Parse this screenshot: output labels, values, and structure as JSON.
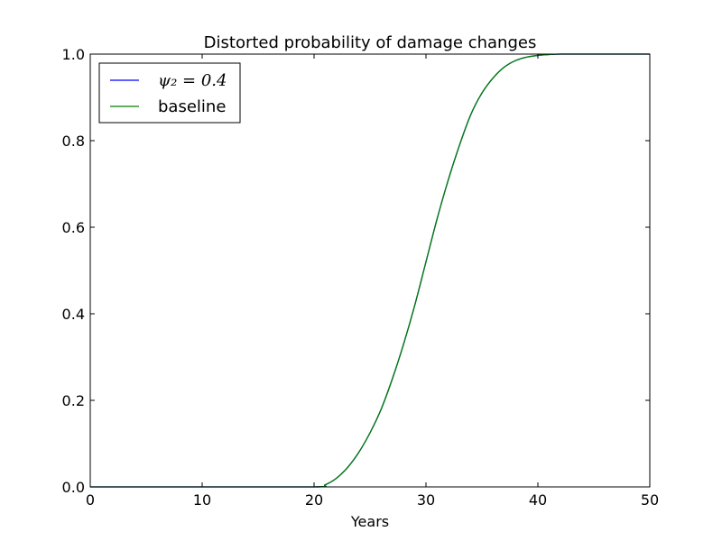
{
  "chart_data": {
    "type": "line",
    "title": "Distorted probability of damage changes",
    "xlabel": "Years",
    "ylabel": "",
    "xlim": [
      0,
      50
    ],
    "ylim": [
      0,
      1.0
    ],
    "x_ticks": [
      0,
      10,
      20,
      30,
      40,
      50
    ],
    "y_ticks": [
      0.0,
      0.2,
      0.4,
      0.6,
      0.8,
      1.0
    ],
    "x_tick_labels": [
      "0",
      "10",
      "20",
      "30",
      "40",
      "50"
    ],
    "y_tick_labels": [
      "0.0",
      "0.2",
      "0.4",
      "0.6",
      "0.8",
      "1.0"
    ],
    "grid": false,
    "legend_position": "top-left",
    "series": [
      {
        "name": "ψ₂ = 0.4",
        "color": "#0000ff",
        "x": [
          0,
          10,
          20,
          21,
          22,
          23,
          24,
          25,
          26,
          27,
          28,
          29,
          30,
          31,
          32,
          33,
          34,
          35,
          36,
          37,
          38,
          39,
          40,
          41,
          42,
          43,
          50
        ],
        "y": [
          0,
          0,
          0,
          0.005,
          0.02,
          0.045,
          0.08,
          0.125,
          0.18,
          0.25,
          0.33,
          0.42,
          0.52,
          0.62,
          0.71,
          0.79,
          0.86,
          0.91,
          0.945,
          0.97,
          0.985,
          0.993,
          0.997,
          0.999,
          1.0,
          1.0,
          1.0
        ]
      },
      {
        "name": "baseline",
        "color": "#008000",
        "x": [
          0,
          10,
          20,
          21,
          22,
          23,
          24,
          25,
          26,
          27,
          28,
          29,
          30,
          31,
          32,
          33,
          34,
          35,
          36,
          37,
          38,
          39,
          40,
          41,
          42,
          43,
          50
        ],
        "y": [
          0,
          0,
          0,
          0.005,
          0.02,
          0.045,
          0.08,
          0.125,
          0.18,
          0.25,
          0.33,
          0.42,
          0.52,
          0.62,
          0.71,
          0.79,
          0.86,
          0.91,
          0.945,
          0.97,
          0.985,
          0.993,
          0.997,
          0.999,
          1.0,
          1.0,
          1.0
        ]
      }
    ]
  }
}
